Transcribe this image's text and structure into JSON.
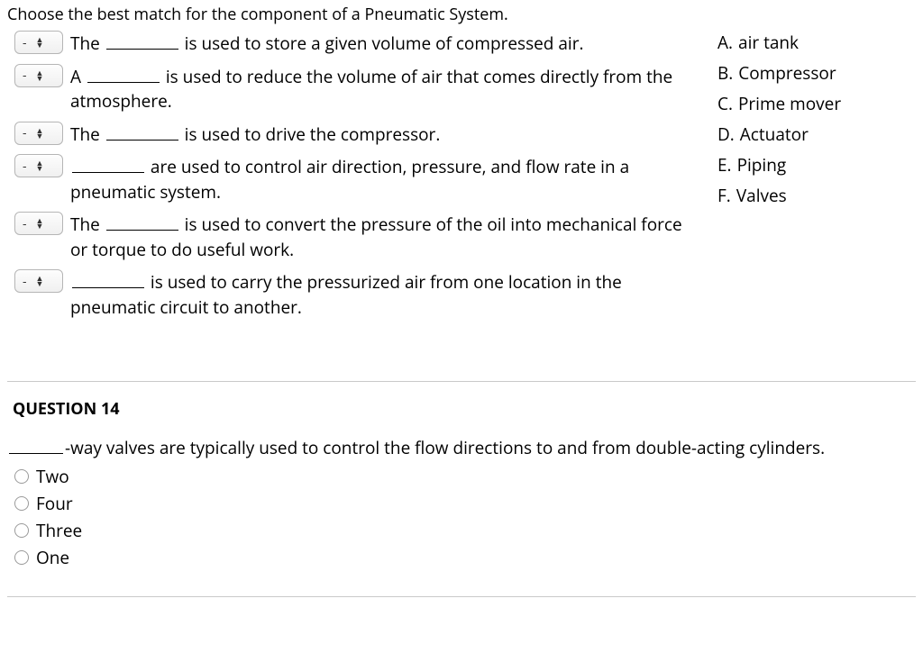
{
  "matching": {
    "instruction": "Choose the best match for the component of a Pneumatic System.",
    "selector_placeholder": "-",
    "items": [
      {
        "pre": "The ",
        "post": " is used to store a given volume of compressed air."
      },
      {
        "pre": "A ",
        "post": " is used to reduce the volume of air that comes directly from the atmosphere."
      },
      {
        "pre": "The ",
        "post": " is used to drive the compressor."
      },
      {
        "pre": "",
        "post": " are used to control air direction, pressure, and flow rate in a pneumatic system."
      },
      {
        "pre": "The ",
        "post": " is used to convert the pressure of the oil into mechanical force or torque to do useful work."
      },
      {
        "pre": "",
        "post": " is used to carry the pressurized air from one location in the pneumatic circuit to another."
      }
    ],
    "answers": [
      {
        "letter": "A.",
        "text": "air tank"
      },
      {
        "letter": "B.",
        "text": "Compressor"
      },
      {
        "letter": "C.",
        "text": "Prime mover"
      },
      {
        "letter": "D.",
        "text": "Actuator"
      },
      {
        "letter": "E.",
        "text": "Piping"
      },
      {
        "letter": "F.",
        "text": "Valves"
      }
    ]
  },
  "q14": {
    "header": "QUESTION 14",
    "pre": "",
    "post": "-way valves are typically used to control the flow directions to and from double-acting cylinders.",
    "options": [
      "Two",
      "Four",
      "Three",
      "One"
    ]
  }
}
